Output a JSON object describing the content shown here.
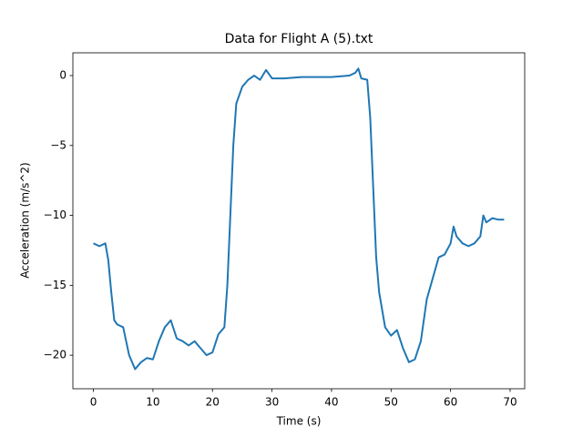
{
  "chart_data": {
    "type": "line",
    "title": "Data for Flight A (5).txt",
    "x_label": "Time (s)",
    "y_label": "Acceleration (m/s^2)",
    "x": [
      0,
      1,
      2,
      2.5,
      3,
      3.5,
      4,
      5,
      6,
      7,
      8,
      9,
      10,
      11,
      12,
      13,
      14,
      15,
      16,
      17,
      18,
      19,
      20,
      21,
      22,
      22.5,
      23,
      23.5,
      24,
      25,
      26,
      27,
      28,
      29,
      30,
      32,
      35,
      40,
      43,
      44,
      44.5,
      45,
      46,
      46.5,
      47,
      47.5,
      48,
      49,
      50,
      51,
      52,
      53,
      54,
      55,
      56,
      57,
      58,
      59,
      60,
      60.5,
      61,
      62,
      63,
      64,
      65,
      65.5,
      66,
      67,
      68,
      69
    ],
    "values": [
      -12,
      -12.2,
      -12,
      -13.2,
      -15.5,
      -17.5,
      -17.8,
      -18,
      -20,
      -21,
      -20.5,
      -20.2,
      -20.3,
      -19,
      -18,
      -17.5,
      -18.8,
      -19,
      -19.3,
      -19,
      -19.5,
      -20,
      -19.8,
      -18.5,
      -18,
      -15,
      -10,
      -5,
      -2,
      -0.8,
      -0.3,
      0,
      -0.3,
      0.4,
      -0.2,
      -0.2,
      -0.1,
      -0.1,
      0,
      0.2,
      0.5,
      -0.2,
      -0.3,
      -3,
      -8,
      -13,
      -15.5,
      -18,
      -18.6,
      -18.2,
      -19.5,
      -20.5,
      -20.3,
      -19,
      -16,
      -14.5,
      -13,
      -12.8,
      -12,
      -10.8,
      -11.5,
      -12,
      -12.2,
      -12,
      -11.5,
      -10,
      -10.5,
      -10.2,
      -10.3,
      -10.3
    ],
    "color": "#1f77b4",
    "xlim": [
      -3.45,
      72.45
    ],
    "ylim": [
      -22.4,
      1.63
    ],
    "xticks": [
      0,
      10,
      20,
      30,
      40,
      50,
      60,
      70
    ],
    "yticks": [
      0,
      {
        "value": -5,
        "label": "−5"
      },
      {
        "value": -10,
        "label": "−10"
      },
      {
        "value": -15,
        "label": "−15"
      },
      {
        "value": -20,
        "label": "−20"
      }
    ]
  }
}
